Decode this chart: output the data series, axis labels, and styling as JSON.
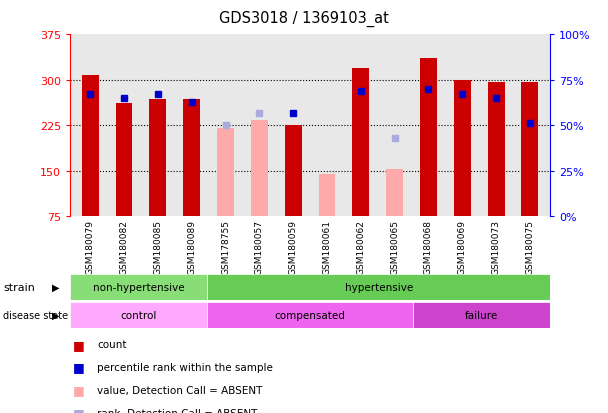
{
  "title": "GDS3018 / 1369103_at",
  "samples": [
    "GSM180079",
    "GSM180082",
    "GSM180085",
    "GSM180089",
    "GSM178755",
    "GSM180057",
    "GSM180059",
    "GSM180061",
    "GSM180062",
    "GSM180065",
    "GSM180068",
    "GSM180069",
    "GSM180073",
    "GSM180075"
  ],
  "count_values": [
    308,
    262,
    268,
    268,
    null,
    null,
    226,
    null,
    320,
    null,
    335,
    300,
    296,
    297
  ],
  "count_absent": [
    null,
    null,
    null,
    null,
    220,
    233,
    null,
    145,
    null,
    153,
    null,
    null,
    null,
    null
  ],
  "percentile_values": [
    67,
    65,
    67,
    63,
    null,
    null,
    57,
    null,
    69,
    null,
    70,
    67,
    65,
    51
  ],
  "percentile_absent": [
    null,
    null,
    null,
    null,
    50,
    57,
    null,
    null,
    null,
    43,
    null,
    null,
    null,
    null
  ],
  "ylim_left": [
    75,
    375
  ],
  "ylim_right": [
    0,
    100
  ],
  "left_ticks": [
    75,
    150,
    225,
    300,
    375
  ],
  "right_ticks": [
    0,
    25,
    50,
    75,
    100
  ],
  "right_tick_labels": [
    "0%",
    "25%",
    "50%",
    "75%",
    "100%"
  ],
  "count_color": "#cc0000",
  "count_absent_color": "#ffaaaa",
  "percentile_color": "#0000cc",
  "percentile_absent_color": "#aaaadd",
  "bg_color": "#ffffff",
  "plot_bg": "#e8e8e8",
  "strain_groups": [
    {
      "label": "non-hypertensive",
      "start": 0,
      "end": 4,
      "color": "#88dd77"
    },
    {
      "label": "hypertensive",
      "start": 4,
      "end": 14,
      "color": "#66cc55"
    }
  ],
  "disease_groups": [
    {
      "label": "control",
      "start": 0,
      "end": 4,
      "color": "#ffaaff"
    },
    {
      "label": "compensated",
      "start": 4,
      "end": 10,
      "color": "#ee66ee"
    },
    {
      "label": "failure",
      "start": 10,
      "end": 14,
      "color": "#cc44cc"
    }
  ],
  "legend_items": [
    {
      "label": "count",
      "color": "#cc0000"
    },
    {
      "label": "percentile rank within the sample",
      "color": "#0000cc"
    },
    {
      "label": "value, Detection Call = ABSENT",
      "color": "#ffaaaa"
    },
    {
      "label": "rank, Detection Call = ABSENT",
      "color": "#aaaadd"
    }
  ]
}
